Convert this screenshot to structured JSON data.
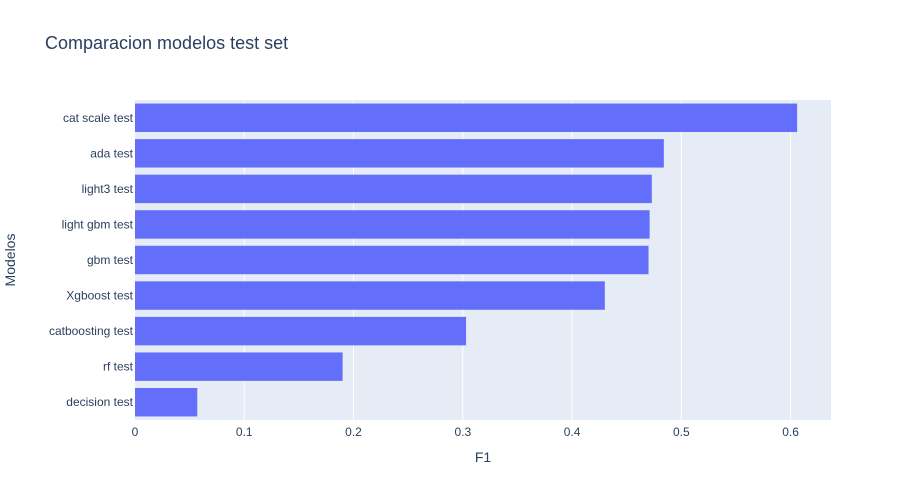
{
  "chart_data": {
    "type": "bar",
    "orientation": "horizontal",
    "title": "Comparacion modelos test set",
    "xlabel": "F1",
    "ylabel": "Modelos",
    "xlim": [
      0,
      0.637
    ],
    "xticks": [
      "0",
      "0.1",
      "0.2",
      "0.3",
      "0.4",
      "0.5",
      "0.6"
    ],
    "categories": [
      "cat scale test",
      "ada test",
      "light3 test",
      "light gbm test",
      "gbm test",
      "Xgboost test",
      "catboosting test",
      "rf test",
      "decision test"
    ],
    "values": [
      0.606,
      0.484,
      0.473,
      0.471,
      0.47,
      0.43,
      0.303,
      0.19,
      0.057
    ],
    "grid": true,
    "colors": {
      "bar": "#636efa",
      "plot_bg": "#e5ecf6",
      "grid": "#ffffff",
      "text": "#2a3f5f"
    }
  }
}
